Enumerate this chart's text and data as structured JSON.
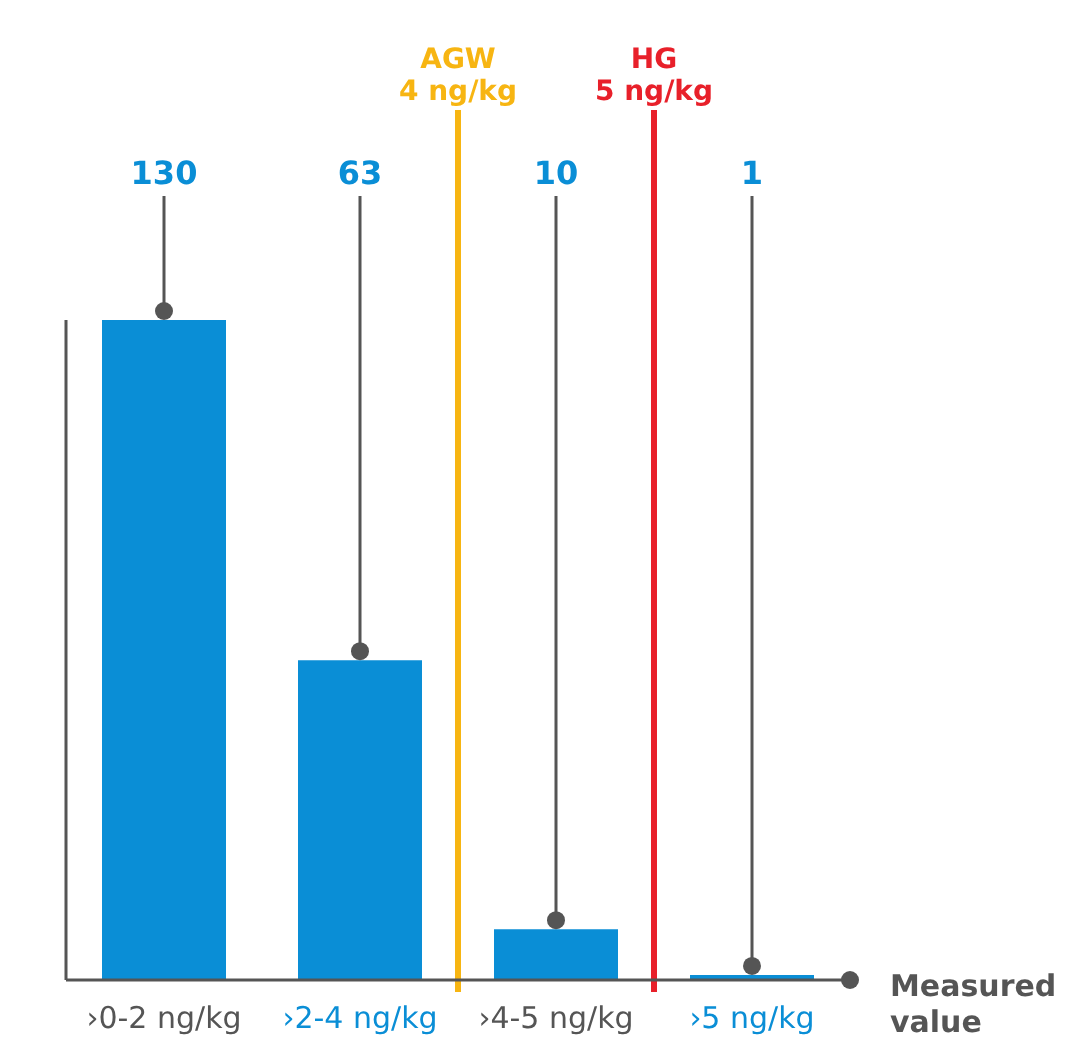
{
  "chart_data": {
    "type": "bar",
    "categories": [
      "›0-2 ng/kg",
      "›2-4 ng/kg",
      "›4-5 ng/kg",
      "›5 ng/kg"
    ],
    "values": [
      130,
      63,
      10,
      1
    ],
    "color": "#0a8ed6",
    "data_labels": true,
    "xlabel": "Measured value",
    "ref_lines": [
      {
        "axis": "x",
        "value": "›4-5 ng/kg",
        "label": "AGW 4 ng/kg",
        "color": "#f7b512"
      },
      {
        "axis": "x",
        "value": "›5 ng/kg",
        "label": "HG 5 ng/kg",
        "color": "#e8202a"
      }
    ]
  }
}
